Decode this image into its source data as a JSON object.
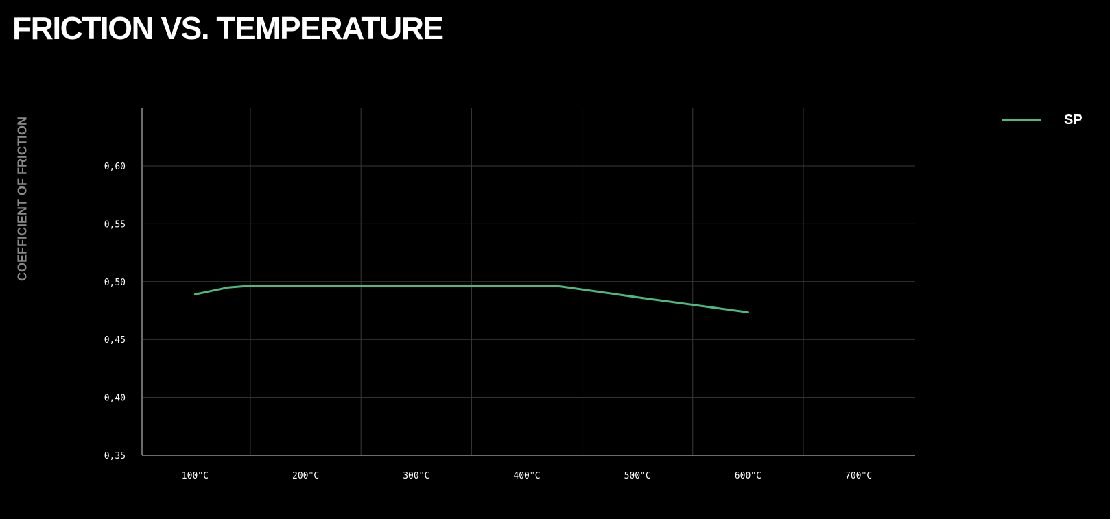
{
  "chart_data": {
    "type": "line",
    "title": "FRICTION VS. TEMPERATURE",
    "xlabel": "",
    "ylabel": "COEFFICIENT OF FRICTION",
    "x_ticks": [
      "100°C",
      "200°C",
      "300°C",
      "400°C",
      "500°C",
      "600°C",
      "700°C"
    ],
    "x_tick_values": [
      100,
      200,
      300,
      400,
      500,
      600,
      700
    ],
    "y_ticks": [
      "0,60",
      "0,55",
      "0,50",
      "0,45",
      "0,40",
      "0,35"
    ],
    "y_tick_values": [
      0.6,
      0.55,
      0.5,
      0.45,
      0.4,
      0.35
    ],
    "xlim": [
      52,
      750
    ],
    "ylim": [
      0.35,
      0.65
    ],
    "grid": true,
    "legend_position": "top-right",
    "series": [
      {
        "name": "SP",
        "color": "#4cba7f",
        "x": [
          100,
          115,
          130,
          150,
          200,
          300,
          400,
          415,
          430,
          500,
          600
        ],
        "y": [
          0.489,
          0.492,
          0.495,
          0.4965,
          0.4965,
          0.4965,
          0.4965,
          0.4965,
          0.496,
          0.4865,
          0.4735
        ]
      }
    ]
  }
}
